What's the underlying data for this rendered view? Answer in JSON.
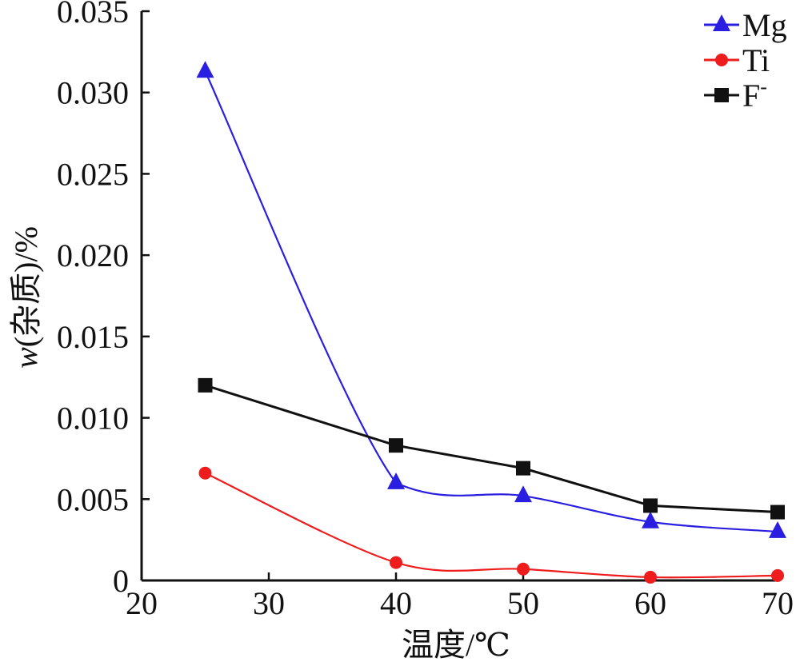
{
  "chart_data": {
    "type": "line",
    "title": "",
    "xlabel": "温度/℃",
    "ylabel_prefix": "w",
    "ylabel_suffix": "(杂质)/%",
    "xlim": [
      20,
      70
    ],
    "ylim": [
      0,
      0.035
    ],
    "x_ticks": [
      20,
      30,
      40,
      50,
      60,
      70
    ],
    "x_tick_labels": [
      "20",
      "30",
      "40",
      "50",
      "60",
      "70"
    ],
    "y_ticks": [
      0,
      0.005,
      0.01,
      0.015,
      0.02,
      0.025,
      0.03,
      0.035
    ],
    "y_tick_labels": [
      "0",
      "0.005",
      "0.010",
      "0.015",
      "0.020",
      "0.025",
      "0.030",
      "0.035"
    ],
    "grid": false,
    "legend_position": "top-right",
    "series": [
      {
        "name": "Mg",
        "marker": "triangle",
        "color": "#2a1fe0",
        "x": [
          25,
          40,
          50,
          60,
          70
        ],
        "y": [
          0.0313,
          0.006,
          0.0052,
          0.0036,
          0.003
        ]
      },
      {
        "name": "Ti",
        "marker": "circle",
        "color": "#ee1c1c",
        "x": [
          25,
          40,
          50,
          60,
          70
        ],
        "y": [
          0.0066,
          0.0011,
          0.0007,
          0.0002,
          0.0003
        ]
      },
      {
        "name": "F",
        "name_superscript": "-",
        "marker": "square",
        "color": "#111111",
        "x": [
          25,
          40,
          50,
          60,
          70
        ],
        "y": [
          0.012,
          0.0083,
          0.0069,
          0.0046,
          0.0042
        ]
      }
    ]
  }
}
